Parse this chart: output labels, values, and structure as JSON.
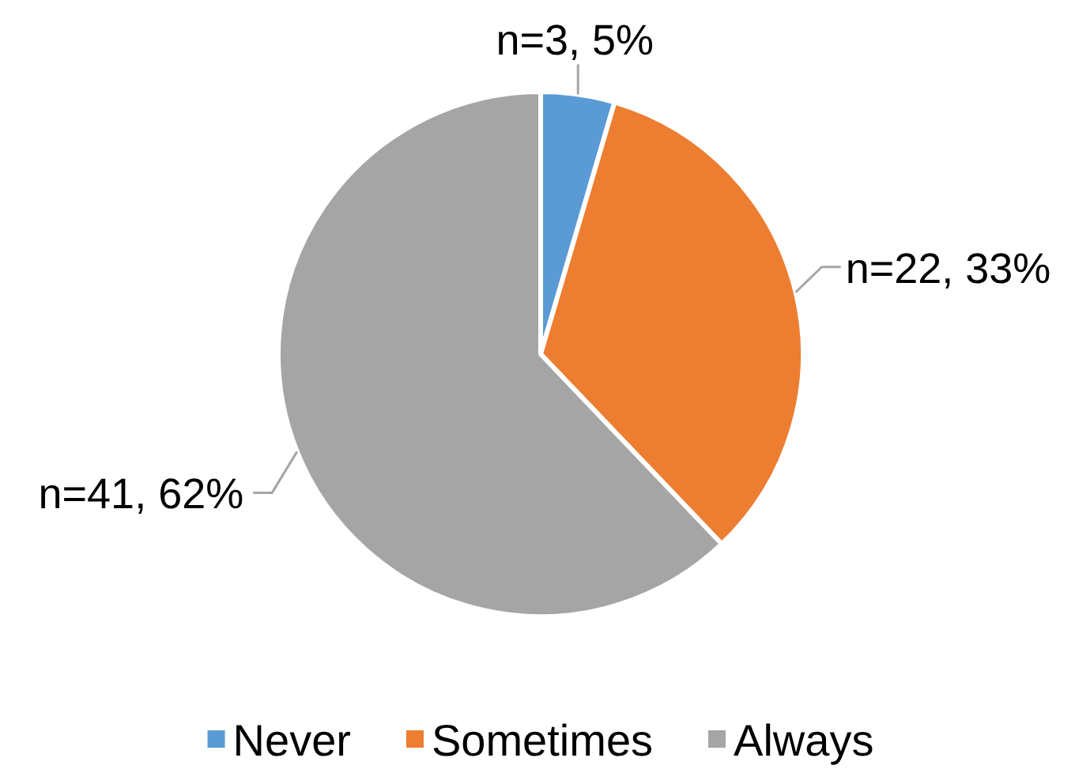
{
  "chart_data": {
    "type": "pie",
    "categories": [
      "Never",
      "Sometimes",
      "Always"
    ],
    "values": [
      3,
      22,
      41
    ],
    "colors": [
      "#5b9bd5",
      "#ed7d31",
      "#a5a5a5"
    ],
    "value_labels": [
      "n=3, 5%",
      "n=22, 33%",
      "n=41, 62%"
    ],
    "legend": "bottom"
  }
}
